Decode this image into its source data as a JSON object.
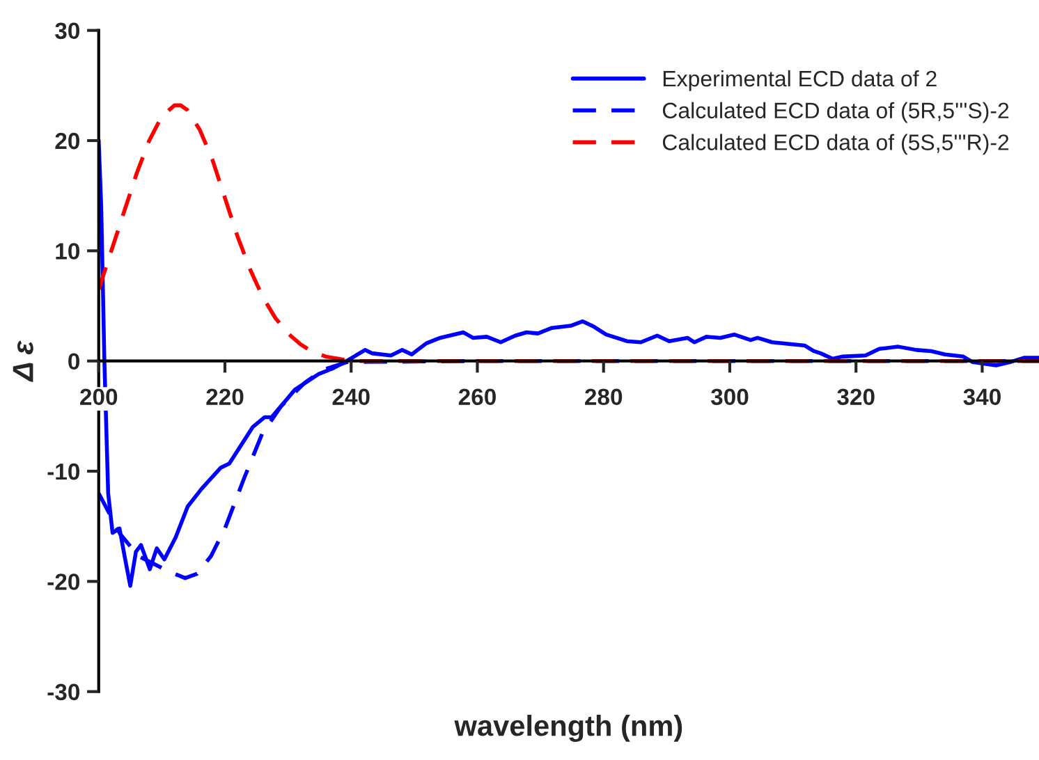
{
  "chart_data": {
    "type": "line",
    "xlabel": "wavelength (nm)",
    "ylabel": "Δ ε",
    "xlim": [
      200,
      349
    ],
    "ylim": [
      -30,
      30
    ],
    "xticks": [
      200,
      220,
      240,
      260,
      280,
      300,
      320,
      340
    ],
    "yticks": [
      -30,
      -20,
      -10,
      0,
      10,
      20,
      30
    ],
    "grid": false,
    "legend": "top right",
    "marker": "none",
    "series": [
      {
        "name": "Experimental ECD data of 2",
        "color": "#0000ff",
        "line_style": "solid",
        "x": [
          200,
          200.4,
          200.9,
          201.5,
          202.2,
          203.3,
          204.1,
          205.0,
          205.9,
          206.7,
          208.1,
          209.2,
          210.4,
          212.2,
          214.1,
          216.3,
          219.3,
          220.7,
          224.4,
          226.3,
          227.4,
          231.1,
          234.8,
          237.0,
          239.3,
          242.2,
          243.3,
          246.3,
          248.1,
          249.6,
          251.9,
          254.1,
          257.8,
          259.3,
          261.5,
          263.7,
          266.0,
          267.8,
          269.6,
          271.8,
          274.8,
          276.7,
          278.5,
          280.4,
          283.7,
          285.9,
          288.5,
          290.4,
          293.3,
          294.4,
          296.3,
          298.5,
          300.7,
          303.3,
          304.4,
          306.7,
          311.9,
          313.3,
          314.4,
          316.3,
          317.8,
          321.5,
          323.7,
          326.7,
          329.6,
          331.9,
          334.1,
          337.0,
          338.5,
          342.2,
          344.4,
          346.7,
          348.9
        ],
        "values": [
          20,
          14,
          0,
          -12,
          -15.6,
          -15.2,
          -17.7,
          -20.4,
          -17.3,
          -16.7,
          -18.9,
          -17,
          -18,
          -16,
          -13.2,
          -11.6,
          -9.7,
          -9.3,
          -6,
          -5.1,
          -5.1,
          -2.6,
          -1.2,
          -0.7,
          0,
          1,
          0.7,
          0.5,
          1,
          0.6,
          1.6,
          2.1,
          2.6,
          2.1,
          2.2,
          1.7,
          2.3,
          2.6,
          2.5,
          3,
          3.2,
          3.6,
          3.1,
          2.4,
          1.8,
          1.7,
          2.3,
          1.8,
          2.1,
          1.7,
          2.2,
          2.1,
          2.4,
          1.9,
          2.1,
          1.7,
          1.4,
          0.9,
          0.7,
          0.2,
          0.4,
          0.5,
          1.1,
          1.3,
          1,
          0.9,
          0.6,
          0.4,
          -0.1,
          -0.4,
          -0.1,
          0.3,
          0.3
        ]
      },
      {
        "name": "Calculated ECD data of (5R,5'''S)-2",
        "color": "#0000ff",
        "line_style": "dashed",
        "x": [
          200,
          203.4,
          206.3,
          211.1,
          213.7,
          215.6,
          217.8,
          220,
          223,
          225.9,
          228.9,
          232.6,
          235.6,
          239.3,
          260,
          280,
          300,
          320,
          340,
          349
        ],
        "values": [
          -12,
          -15.7,
          -17.7,
          -19.1,
          -19.7,
          -19.3,
          -17.7,
          -15.2,
          -10.7,
          -6.6,
          -4.1,
          -2,
          -0.8,
          -0.1,
          0,
          0,
          0,
          0,
          0,
          0
        ]
      },
      {
        "name": "Calculated ECD data of (5S,5'''R)-2",
        "color": "#ff0000",
        "line_style": "dashed",
        "x": [
          200,
          202,
          204,
          206,
          208,
          210,
          212,
          213,
          214,
          216,
          218,
          220,
          222,
          224,
          226,
          228,
          230,
          232,
          234,
          236,
          238,
          240,
          260,
          280,
          300,
          320,
          340,
          349
        ],
        "values": [
          6.5,
          10,
          13.5,
          17,
          20,
          22.2,
          23.2,
          23.2,
          22.8,
          21,
          18.3,
          14.8,
          11.3,
          8.3,
          5.8,
          3.9,
          2.5,
          1.5,
          0.8,
          0.4,
          0.2,
          0,
          0,
          0,
          0,
          0,
          0,
          0
        ]
      }
    ]
  }
}
